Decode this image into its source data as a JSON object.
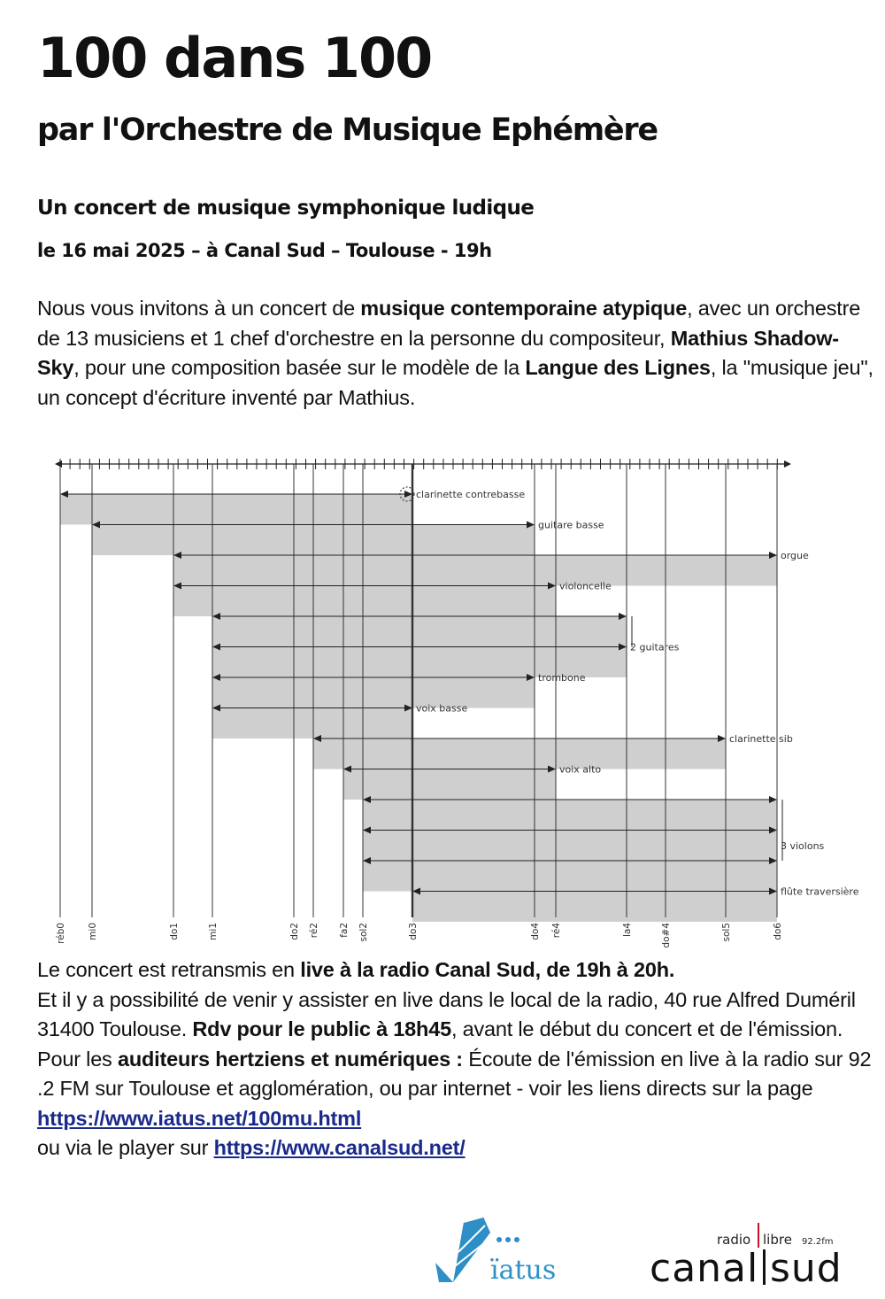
{
  "header": {
    "title": "100 dans 100",
    "subtitle": "par l'Orchestre de Musique Ephémère",
    "tagline": "Un concert de musique symphonique ludique",
    "dateline": "le 16 mai 2025 – à Canal Sud – Toulouse - 19h"
  },
  "intro": [
    {
      "t": "Nous vous invitons à un concert de "
    },
    {
      "t": "musique contemporaine atypique",
      "b": true
    },
    {
      "t": ", avec un orchestre de 13 musiciens et 1 chef d'orchestre en la personne du compositeur,  "
    },
    {
      "t": "Mathius Shadow-Sky",
      "b": true
    },
    {
      "t": ", pour une composition basée sur le modèle de la "
    },
    {
      "t": "Langue des Lignes",
      "b": true
    },
    {
      "t": ",  la \"musique jeu\", un concept d'écriture inventé par Mathius."
    }
  ],
  "diagram": {
    "notes": [
      "réb0",
      "mi0",
      "do1",
      "mi1",
      "do2",
      "ré2",
      "fa2",
      "sol2",
      "do3",
      "do4",
      "ré4",
      "la4",
      "do#4",
      "sol5",
      "do6"
    ],
    "bold_note": "do3",
    "instruments": [
      {
        "label": "clarinette contrebasse",
        "lines": [
          [
            "réb0",
            "do3"
          ]
        ],
        "bar": [
          "réb0",
          "do3"
        ]
      },
      {
        "label": "guitare basse",
        "lines": [
          [
            "mi0",
            "do4"
          ]
        ],
        "bar": [
          "mi0",
          "do4"
        ]
      },
      {
        "label": "orgue",
        "lines": [
          [
            "do1",
            "do6"
          ]
        ],
        "bar": [
          "do1",
          "do6"
        ]
      },
      {
        "label": "violoncelle",
        "lines": [
          [
            "do1",
            "ré4"
          ]
        ],
        "bar": [
          "do1",
          "ré4"
        ]
      },
      {
        "label": "2 guitares",
        "lines": [
          [
            "mi1",
            "la4"
          ],
          [
            "mi1",
            "la4"
          ]
        ],
        "bar": [
          "mi1",
          "la4"
        ]
      },
      {
        "label": "trombone",
        "lines": [
          [
            "mi1",
            "do4"
          ]
        ],
        "bar": [
          "mi1",
          "do4"
        ]
      },
      {
        "label": "voix basse",
        "lines": [
          [
            "mi1",
            "do3"
          ]
        ],
        "bar": [
          "mi1",
          "do3"
        ]
      },
      {
        "label": "clarinette sib",
        "lines": [
          [
            "ré2",
            "sol5"
          ]
        ],
        "bar": [
          "ré2",
          "sol5"
        ]
      },
      {
        "label": "voix alto",
        "lines": [
          [
            "fa2",
            "ré4"
          ]
        ],
        "bar": [
          "fa2",
          "ré4"
        ]
      },
      {
        "label": "3 violons",
        "lines": [
          [
            "sol2",
            "do6"
          ],
          [
            "sol2",
            "do6"
          ],
          [
            "sol2",
            "do6"
          ]
        ],
        "bar": [
          "sol2",
          "do6"
        ]
      },
      {
        "label": "flûte traversière",
        "lines": [
          [
            "do3",
            "do6"
          ]
        ],
        "bar": [
          "do3",
          "do6"
        ]
      }
    ]
  },
  "info": [
    {
      "t": "Le concert est retransmis en "
    },
    {
      "t": "live à la radio Canal Sud, de 19h à 20h.",
      "b": true
    },
    {
      "br": true
    },
    {
      "t": "Et il y a possibilité de venir y assister en live dans le local de la radio, 40 rue Alfred Duméril 31400 Toulouse.  "
    },
    {
      "t": "Rdv pour le public à 18h45",
      "b": true
    },
    {
      "t": ", avant le début du concert et de l'émission."
    },
    {
      "br": true
    },
    {
      "t": "Pour les "
    },
    {
      "t": "auditeurs hertziens et numériques :",
      "b": true
    },
    {
      "t": "  Écoute de l'émission en live à la radio sur 92 .2 FM sur Toulouse et agglomération, ou par internet - voir les liens directs sur la page "
    },
    {
      "t": "https://www.iatus.net/100mu.html",
      "link": true
    },
    {
      "br": true
    },
    {
      "t": "ou via le player sur "
    },
    {
      "t": "https://www.canalsud.net/",
      "link": true
    }
  ],
  "logos": {
    "iatus": {
      "name": "ïatus",
      "color": "#2d8fc6"
    },
    "canalsud": {
      "radio": "radio",
      "libre": "libre",
      "freq": "92.2fm",
      "name_left": "canal",
      "name_right": "sud"
    }
  }
}
